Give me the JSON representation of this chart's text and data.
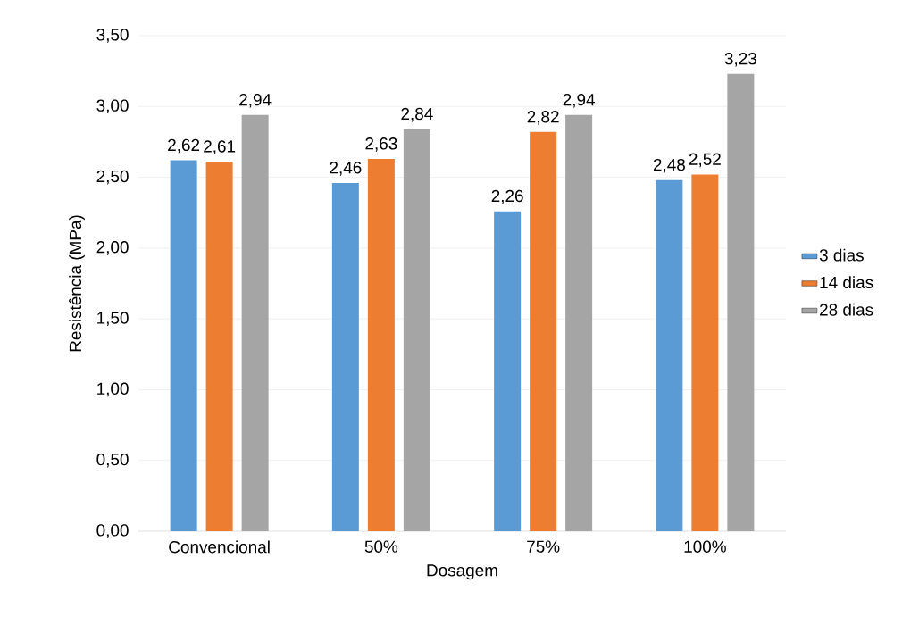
{
  "chart_data": {
    "type": "bar",
    "xlabel": "Dosagem",
    "ylabel": "Resistência (MPa)",
    "categories": [
      "Convencional",
      "50%",
      "75%",
      "100%"
    ],
    "series": [
      {
        "name": "3 dias",
        "color": "#5b9bd5",
        "values": [
          2.62,
          2.46,
          2.26,
          2.48
        ],
        "value_labels": [
          "2,62",
          "2,46",
          "2,26",
          "2,48"
        ]
      },
      {
        "name": "14 dias",
        "color": "#ed7d31",
        "values": [
          2.61,
          2.63,
          2.82,
          2.52
        ],
        "value_labels": [
          "2,61",
          "2,63",
          "2,82",
          "2,52"
        ]
      },
      {
        "name": "28 dias",
        "color": "#a5a5a5",
        "values": [
          2.94,
          2.84,
          2.94,
          3.23
        ],
        "value_labels": [
          "2,94",
          "2,84",
          "2,94",
          "3,23"
        ]
      }
    ],
    "ylim": [
      0,
      3.5
    ],
    "yticks": [
      {
        "value": 0,
        "label": "0,00"
      },
      {
        "value": 0.5,
        "label": "0,50"
      },
      {
        "value": 1,
        "label": "1,00"
      },
      {
        "value": 1.5,
        "label": "1,50"
      },
      {
        "value": 2,
        "label": "2,00"
      },
      {
        "value": 2.5,
        "label": "2,50"
      },
      {
        "value": 3,
        "label": "3,00"
      },
      {
        "value": 3.5,
        "label": "3,50"
      }
    ],
    "grid": "y",
    "legend": "right"
  }
}
